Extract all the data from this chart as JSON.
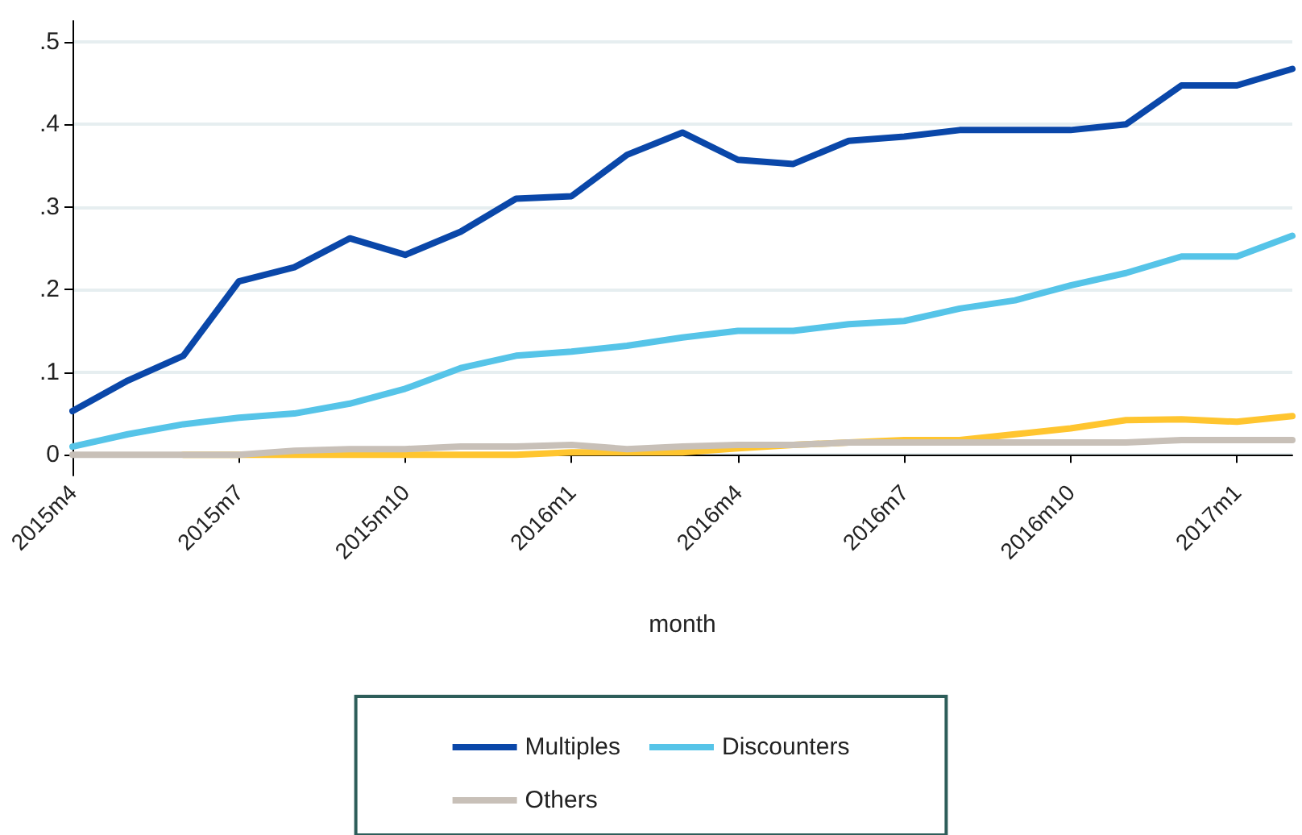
{
  "chart_data": {
    "type": "line",
    "xlabel": "month",
    "categories": [
      "2015m4",
      null,
      null,
      "2015m7",
      null,
      null,
      "2015m10",
      null,
      null,
      "2016m1",
      null,
      null,
      "2016m4",
      null,
      null,
      "2016m7",
      null,
      null,
      "2016m10",
      null,
      null,
      "2017m1",
      null
    ],
    "series": [
      {
        "name": "Multiples",
        "color": "#0a47a9",
        "values": [
          0.053,
          0.09,
          0.12,
          0.21,
          0.227,
          0.262,
          0.242,
          0.27,
          0.31,
          0.313,
          0.363,
          0.39,
          0.357,
          0.352,
          0.38,
          0.385,
          0.393,
          0.393,
          0.393,
          0.4,
          0.447,
          0.447,
          0.467
        ]
      },
      {
        "name": "Discounters",
        "color": "#56c4e8",
        "values": [
          0.01,
          0.025,
          0.037,
          0.045,
          0.05,
          0.062,
          0.08,
          0.105,
          0.12,
          0.125,
          0.132,
          0.142,
          0.15,
          0.15,
          0.158,
          0.162,
          0.177,
          0.187,
          0.205,
          0.22,
          0.24,
          0.24,
          0.265
        ]
      },
      {
        "color": "#ffc52f",
        "values": [
          null,
          null,
          0,
          0,
          0,
          0,
          0,
          0,
          0,
          0.003,
          0.003,
          0.003,
          0.008,
          0.012,
          0.015,
          0.018,
          0.018,
          0.025,
          0.032,
          0.042,
          0.043,
          0.04,
          0.047
        ]
      },
      {
        "name": "Others",
        "color": "#c8c0b8",
        "values": [
          0,
          0,
          0,
          0,
          0.005,
          0.007,
          0.007,
          0.01,
          0.01,
          0.012,
          0.007,
          0.01,
          0.012,
          0.012,
          0.015,
          0.015,
          0.015,
          0.015,
          0.015,
          0.015,
          0.018,
          0.018,
          0.018
        ]
      }
    ],
    "ylim": [
      -0.025,
      0.525
    ],
    "yticks": [
      {
        "value": 0,
        "label": "0"
      },
      {
        "value": 0.1,
        "label": ".1"
      },
      {
        "value": 0.2,
        "label": ".2"
      },
      {
        "value": 0.3,
        "label": ".3"
      },
      {
        "value": 0.4,
        "label": ".4"
      },
      {
        "value": 0.5,
        "label": ".5"
      }
    ],
    "grid": "y",
    "legend": "bottom",
    "marker": "none",
    "line_style": "solid"
  }
}
